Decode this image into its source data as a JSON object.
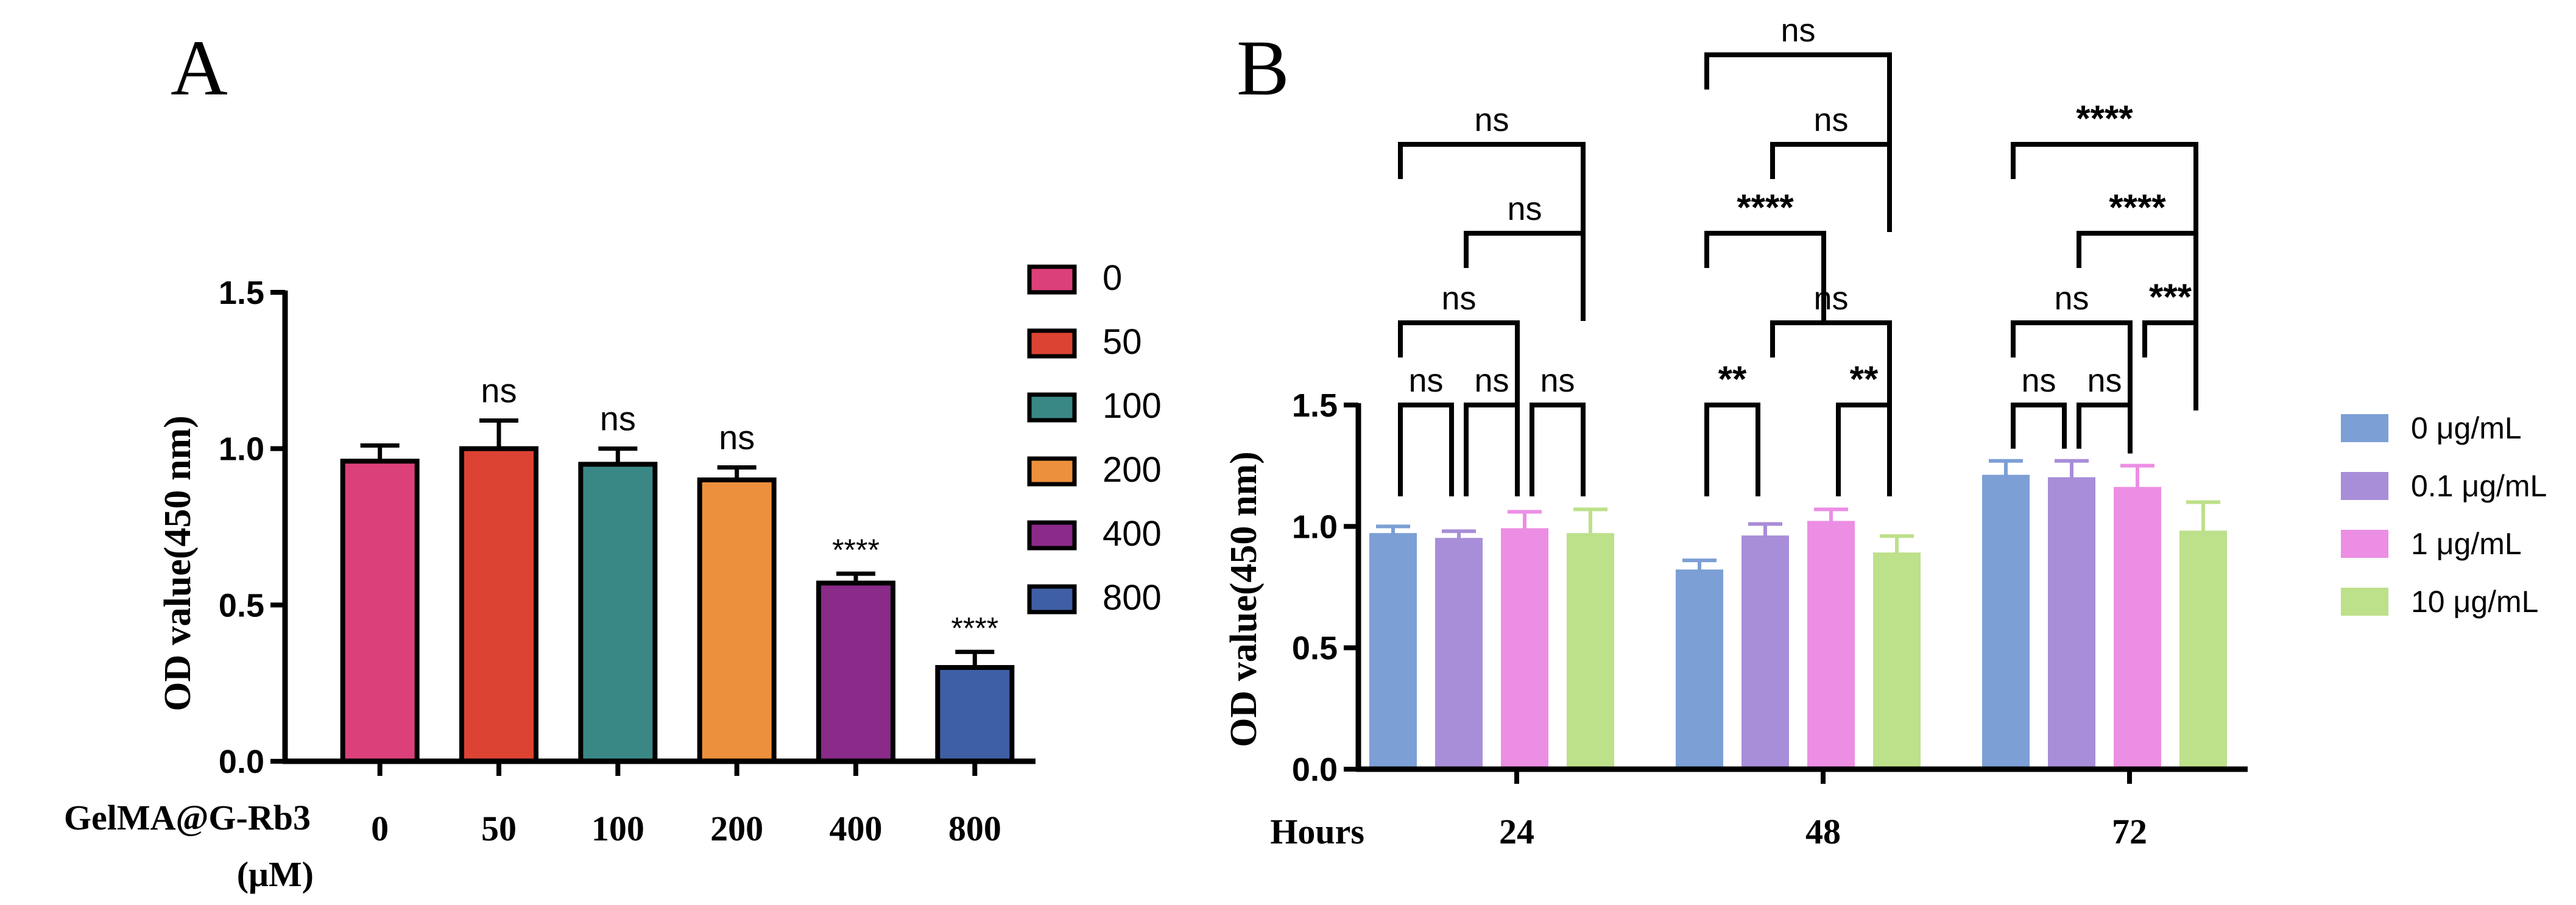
{
  "chart_data": [
    {
      "panel": "A",
      "type": "bar",
      "ylabel": "OD value(450 nm)",
      "xlabel": "GelMA@G-Rb3",
      "xlabel_unit": "(μM)",
      "ylim": [
        0,
        1.5
      ],
      "yticks": [
        "0.0",
        "0.5",
        "1.0",
        "1.5"
      ],
      "ytick_values": [
        0,
        0.5,
        1.0,
        1.5
      ],
      "categories": [
        "0",
        "50",
        "100",
        "200",
        "400",
        "800"
      ],
      "values": [
        0.96,
        1.0,
        0.95,
        0.9,
        0.57,
        0.3
      ],
      "errors": [
        0.05,
        0.09,
        0.05,
        0.04,
        0.03,
        0.05
      ],
      "significance": [
        "",
        "ns",
        "ns",
        "ns",
        "****",
        "****"
      ],
      "colors": [
        "#dc407a",
        "#dd4333",
        "#3a8886",
        "#ec903d",
        "#8a2a89",
        "#3f5fa5"
      ],
      "legend": [
        "0",
        "50",
        "100",
        "200",
        "400",
        "800"
      ],
      "legend_position": "right"
    },
    {
      "panel": "B",
      "type": "bar",
      "ylabel": "OD value(450 nm)",
      "xlabel": "Hours",
      "ylim": [
        0,
        1.5
      ],
      "yticks": [
        "0.0",
        "0.5",
        "1.0",
        "1.5"
      ],
      "ytick_values": [
        0,
        0.5,
        1.0,
        1.5
      ],
      "categories": [
        "24",
        "48",
        "72"
      ],
      "series": [
        {
          "name": "0 μg/mL",
          "color": "#7c9fd5",
          "values": [
            0.97,
            0.82,
            1.21
          ],
          "errors": [
            0.03,
            0.04,
            0.06
          ]
        },
        {
          "name": "0.1 μg/mL",
          "color": "#a88dd8",
          "values": [
            0.95,
            0.96,
            1.2
          ],
          "errors": [
            0.03,
            0.05,
            0.07
          ]
        },
        {
          "name": "1 μg/mL",
          "color": "#ec8ee4",
          "values": [
            0.99,
            1.02,
            1.16
          ],
          "errors": [
            0.07,
            0.05,
            0.09
          ]
        },
        {
          "name": "10 μg/mL",
          "color": "#bde08a",
          "values": [
            0.97,
            0.89,
            0.98
          ],
          "errors": [
            0.1,
            0.07,
            0.12
          ]
        }
      ],
      "legend_position": "right",
      "comparisons": [
        {
          "group": 0,
          "from": 0,
          "to": 1,
          "label": "ns",
          "level": 0
        },
        {
          "group": 0,
          "from": 1,
          "to": 2,
          "label": "ns",
          "level": 0
        },
        {
          "group": 0,
          "from": 2,
          "to": 3,
          "label": "ns",
          "level": 0
        },
        {
          "group": 0,
          "from": 0,
          "to": 2,
          "label": "ns",
          "level": 1
        },
        {
          "group": 0,
          "from": 1,
          "to": 3,
          "label": "ns",
          "level": 2
        },
        {
          "group": 0,
          "from": 0,
          "to": 3,
          "label": "ns",
          "level": 3
        },
        {
          "group": 1,
          "from": 0,
          "to": 1,
          "label": "**",
          "level": 0
        },
        {
          "group": 1,
          "from": 2,
          "to": 3,
          "label": "**",
          "level": 0
        },
        {
          "group": 1,
          "from": 1,
          "to": 3,
          "label": "ns",
          "level": 1
        },
        {
          "group": 1,
          "from": 0,
          "to": 2,
          "label": "****",
          "level": 2
        },
        {
          "group": 1,
          "from": 1,
          "to": 3,
          "label": "ns",
          "level": 3
        },
        {
          "group": 1,
          "from": 0,
          "to": 3,
          "label": "ns",
          "level": 4
        },
        {
          "group": 2,
          "from": 0,
          "to": 1,
          "label": "ns",
          "level": 0
        },
        {
          "group": 2,
          "from": 1,
          "to": 2,
          "label": "ns",
          "level": 0
        },
        {
          "group": 2,
          "from": 0,
          "to": 2,
          "label": "ns",
          "level": 1
        },
        {
          "group": 2,
          "from": 2,
          "to": 3,
          "label": "***",
          "level": 1
        },
        {
          "group": 2,
          "from": 1,
          "to": 3,
          "label": "****",
          "level": 2
        },
        {
          "group": 2,
          "from": 0,
          "to": 3,
          "label": "****",
          "level": 3
        }
      ]
    }
  ]
}
